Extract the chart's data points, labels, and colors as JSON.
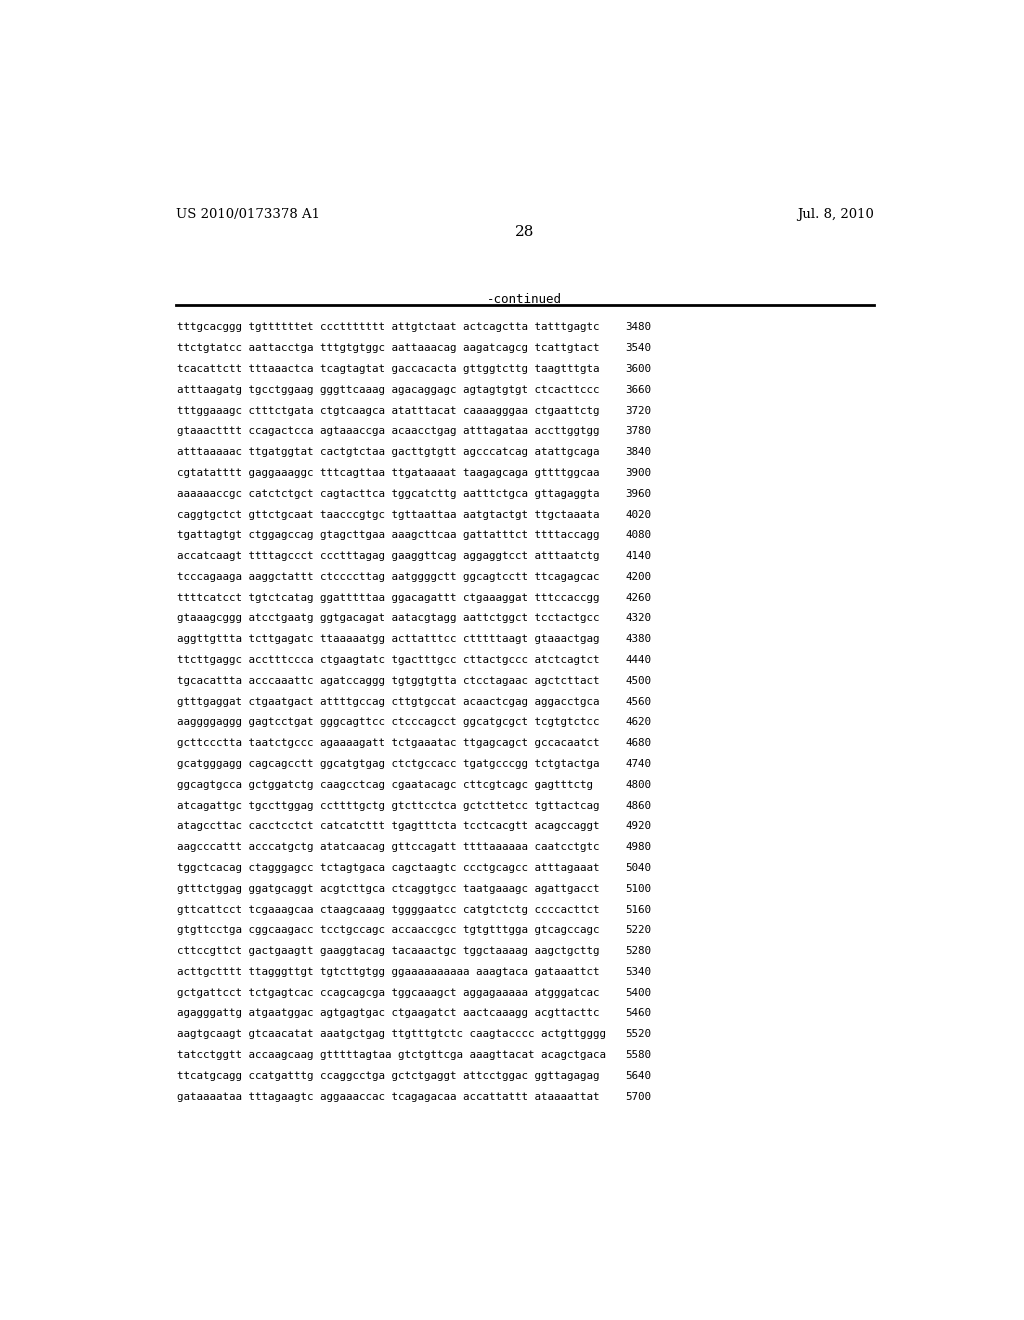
{
  "header_left": "US 2010/0173378 A1",
  "header_right": "Jul. 8, 2010",
  "page_number": "28",
  "continued_label": "-continued",
  "background_color": "#ffffff",
  "text_color": "#000000",
  "sequence_lines": [
    [
      "tttgcacggg",
      "tgttttttet",
      "cccttttttt",
      "attgtctaat",
      "actcagctta",
      "tatttgagtc",
      "3480"
    ],
    [
      "ttctgtatcc",
      "aattacctga",
      "tttgtgtggc",
      "aattaaacag",
      "aagatcagcg",
      "tcattgtact",
      "3540"
    ],
    [
      "tcacattctt",
      "tttaaactca",
      "tcagtagtat",
      "gaccacacta",
      "gttggtcttg",
      "taagtttgta",
      "3600"
    ],
    [
      "atttaagatg",
      "tgcctggaag",
      "gggttcaaag",
      "agacaggagc",
      "agtagtgtgt",
      "ctcacttccc",
      "3660"
    ],
    [
      "tttggaaagc",
      "ctttctgata",
      "ctgtcaagca",
      "atatttacat",
      "caaaagggaa",
      "ctgaattctg",
      "3720"
    ],
    [
      "gtaaactttt",
      "ccagactcca",
      "agtaaaccga",
      "acaacctgag",
      "atttagataa",
      "accttggtgg",
      "3780"
    ],
    [
      "atttaaaaac",
      "ttgatggtat",
      "cactgtctaa",
      "gacttgtgtt",
      "agcccatcag",
      "atattgcaga",
      "3840"
    ],
    [
      "cgtatatttt",
      "gaggaaaggc",
      "tttcagttaa",
      "ttgataaaat",
      "taagagcaga",
      "gttttggcaa",
      "3900"
    ],
    [
      "aaaaaaccgc",
      "catctctgct",
      "cagtacttca",
      "tggcatcttg",
      "aatttctgca",
      "gttagaggta",
      "3960"
    ],
    [
      "caggtgctct",
      "gttctgcaat",
      "taacccgtgc",
      "tgttaattaa",
      "aatgtactgt",
      "ttgctaaata",
      "4020"
    ],
    [
      "tgattagtgt",
      "ctggagccag",
      "gtagcttgaa",
      "aaagcttcaa",
      "gattatttct",
      "ttttaccagg",
      "4080"
    ],
    [
      "accatcaagt",
      "ttttagccct",
      "ccctttagag",
      "gaaggttcag",
      "aggaggtcct",
      "atttaatctg",
      "4140"
    ],
    [
      "tcccagaaga",
      "aaggctattt",
      "ctccccttag",
      "aatggggctt",
      "ggcagtcctt",
      "ttcagagcac",
      "4200"
    ],
    [
      "ttttcatcct",
      "tgtctcatag",
      "ggatttttaa",
      "ggacagattt",
      "ctgaaaggat",
      "tttccaccgg",
      "4260"
    ],
    [
      "gtaaagcggg",
      "atcctgaatg",
      "ggtgacagat",
      "aatacgtagg",
      "aattctggct",
      "tcctactgcc",
      "4320"
    ],
    [
      "aggttgttta",
      "tcttgagatc",
      "ttaaaaatgg",
      "acttatttcc",
      "ctttttaagt",
      "gtaaactgag",
      "4380"
    ],
    [
      "ttcttgaggc",
      "acctttccca",
      "ctgaagtatc",
      "tgactttgcc",
      "cttactgccc",
      "atctcagtct",
      "4440"
    ],
    [
      "tgcacattta",
      "acccaaattc",
      "agatccaggg",
      "tgtggtgtta",
      "ctcctagaac",
      "agctcttact",
      "4500"
    ],
    [
      "gtttgaggat",
      "ctgaatgact",
      "attttgccag",
      "cttgtgccat",
      "acaactcgag",
      "aggacctgca",
      "4560"
    ],
    [
      "aaggggaggg",
      "gagtcctgat",
      "gggcagttcc",
      "ctcccagcct",
      "ggcatgcgct",
      "tcgtgtctcc",
      "4620"
    ],
    [
      "gcttccctta",
      "taatctgccc",
      "agaaaagatt",
      "tctgaaatac",
      "ttgagcagct",
      "gccacaatct",
      "4680"
    ],
    [
      "gcatgggagg",
      "cagcagcctt",
      "ggcatgtgag",
      "ctctgccacc",
      "tgatgcccgg",
      "tctgtactga",
      "4740"
    ],
    [
      "ggcagtgcca",
      "gctggatctg",
      "caagcctcag",
      "cgaatacagc",
      "cttcgtcagc",
      "gagtttctg",
      "4800"
    ],
    [
      "atcagattgc",
      "tgccttggag",
      "ccttttgctg",
      "gtcttcctca",
      "gctcttetcc",
      "tgttactcag",
      "4860"
    ],
    [
      "atagccttac",
      "cacctcctct",
      "catcatcttt",
      "tgagtttcta",
      "tcctcacgtt",
      "acagccaggt",
      "4920"
    ],
    [
      "aagcccattt",
      "acccatgctg",
      "atatcaacag",
      "gttccagatt",
      "ttttaaaaaa",
      "caatcctgtc",
      "4980"
    ],
    [
      "tggctcacag",
      "ctagggagcc",
      "tctagtgaca",
      "cagctaagtc",
      "ccctgcagcc",
      "atttagaaat",
      "5040"
    ],
    [
      "gtttctggag",
      "ggatgcaggt",
      "acgtcttgca",
      "ctcaggtgcc",
      "taatgaaagc",
      "agattgacct",
      "5100"
    ],
    [
      "gttcattcct",
      "tcgaaagcaa",
      "ctaagcaaag",
      "tggggaatcc",
      "catgtctctg",
      "ccccacttct",
      "5160"
    ],
    [
      "gtgttcctga",
      "cggcaagacc",
      "tcctgccagc",
      "accaaccgcc",
      "tgtgtttgga",
      "gtcagccagc",
      "5220"
    ],
    [
      "cttccgttct",
      "gactgaagtt",
      "gaaggtacag",
      "tacaaactgc",
      "tggctaaaag",
      "aagctgcttg",
      "5280"
    ],
    [
      "acttgctttt",
      "ttagggttgt",
      "tgtcttgtgg",
      "ggaaaaaaaaaa",
      "aaagtaca",
      "gataaattct",
      "5340"
    ],
    [
      "gctgattcct",
      "tctgagtcac",
      "ccagcagcga",
      "tggcaaagct",
      "aggagaaaaa",
      "atgggatcac",
      "5400"
    ],
    [
      "agagggattg",
      "atgaatggac",
      "agtgagtgac",
      "ctgaagatct",
      "aactcaaagg",
      "acgttacttc",
      "5460"
    ],
    [
      "aagtgcaagt",
      "gtcaacatat",
      "aaatgctgag",
      "ttgtttgtctc",
      "caagtacccc",
      "actgttgggg",
      "5520"
    ],
    [
      "tatcctggtt",
      "accaagcaag",
      "gtttttagtaa",
      "gtctgttcga",
      "aaagttacat",
      "acagctgaca",
      "5580"
    ],
    [
      "ttcatgcagg",
      "ccatgatttg",
      "ccaggcctga",
      "gctctgaggt",
      "attcctggac",
      "ggttagagag",
      "5640"
    ],
    [
      "gataaaataa",
      "tttagaagtc",
      "aggaaaccac",
      "tcagagacaa",
      "accattattt",
      "ataaaattat",
      "5700"
    ]
  ]
}
